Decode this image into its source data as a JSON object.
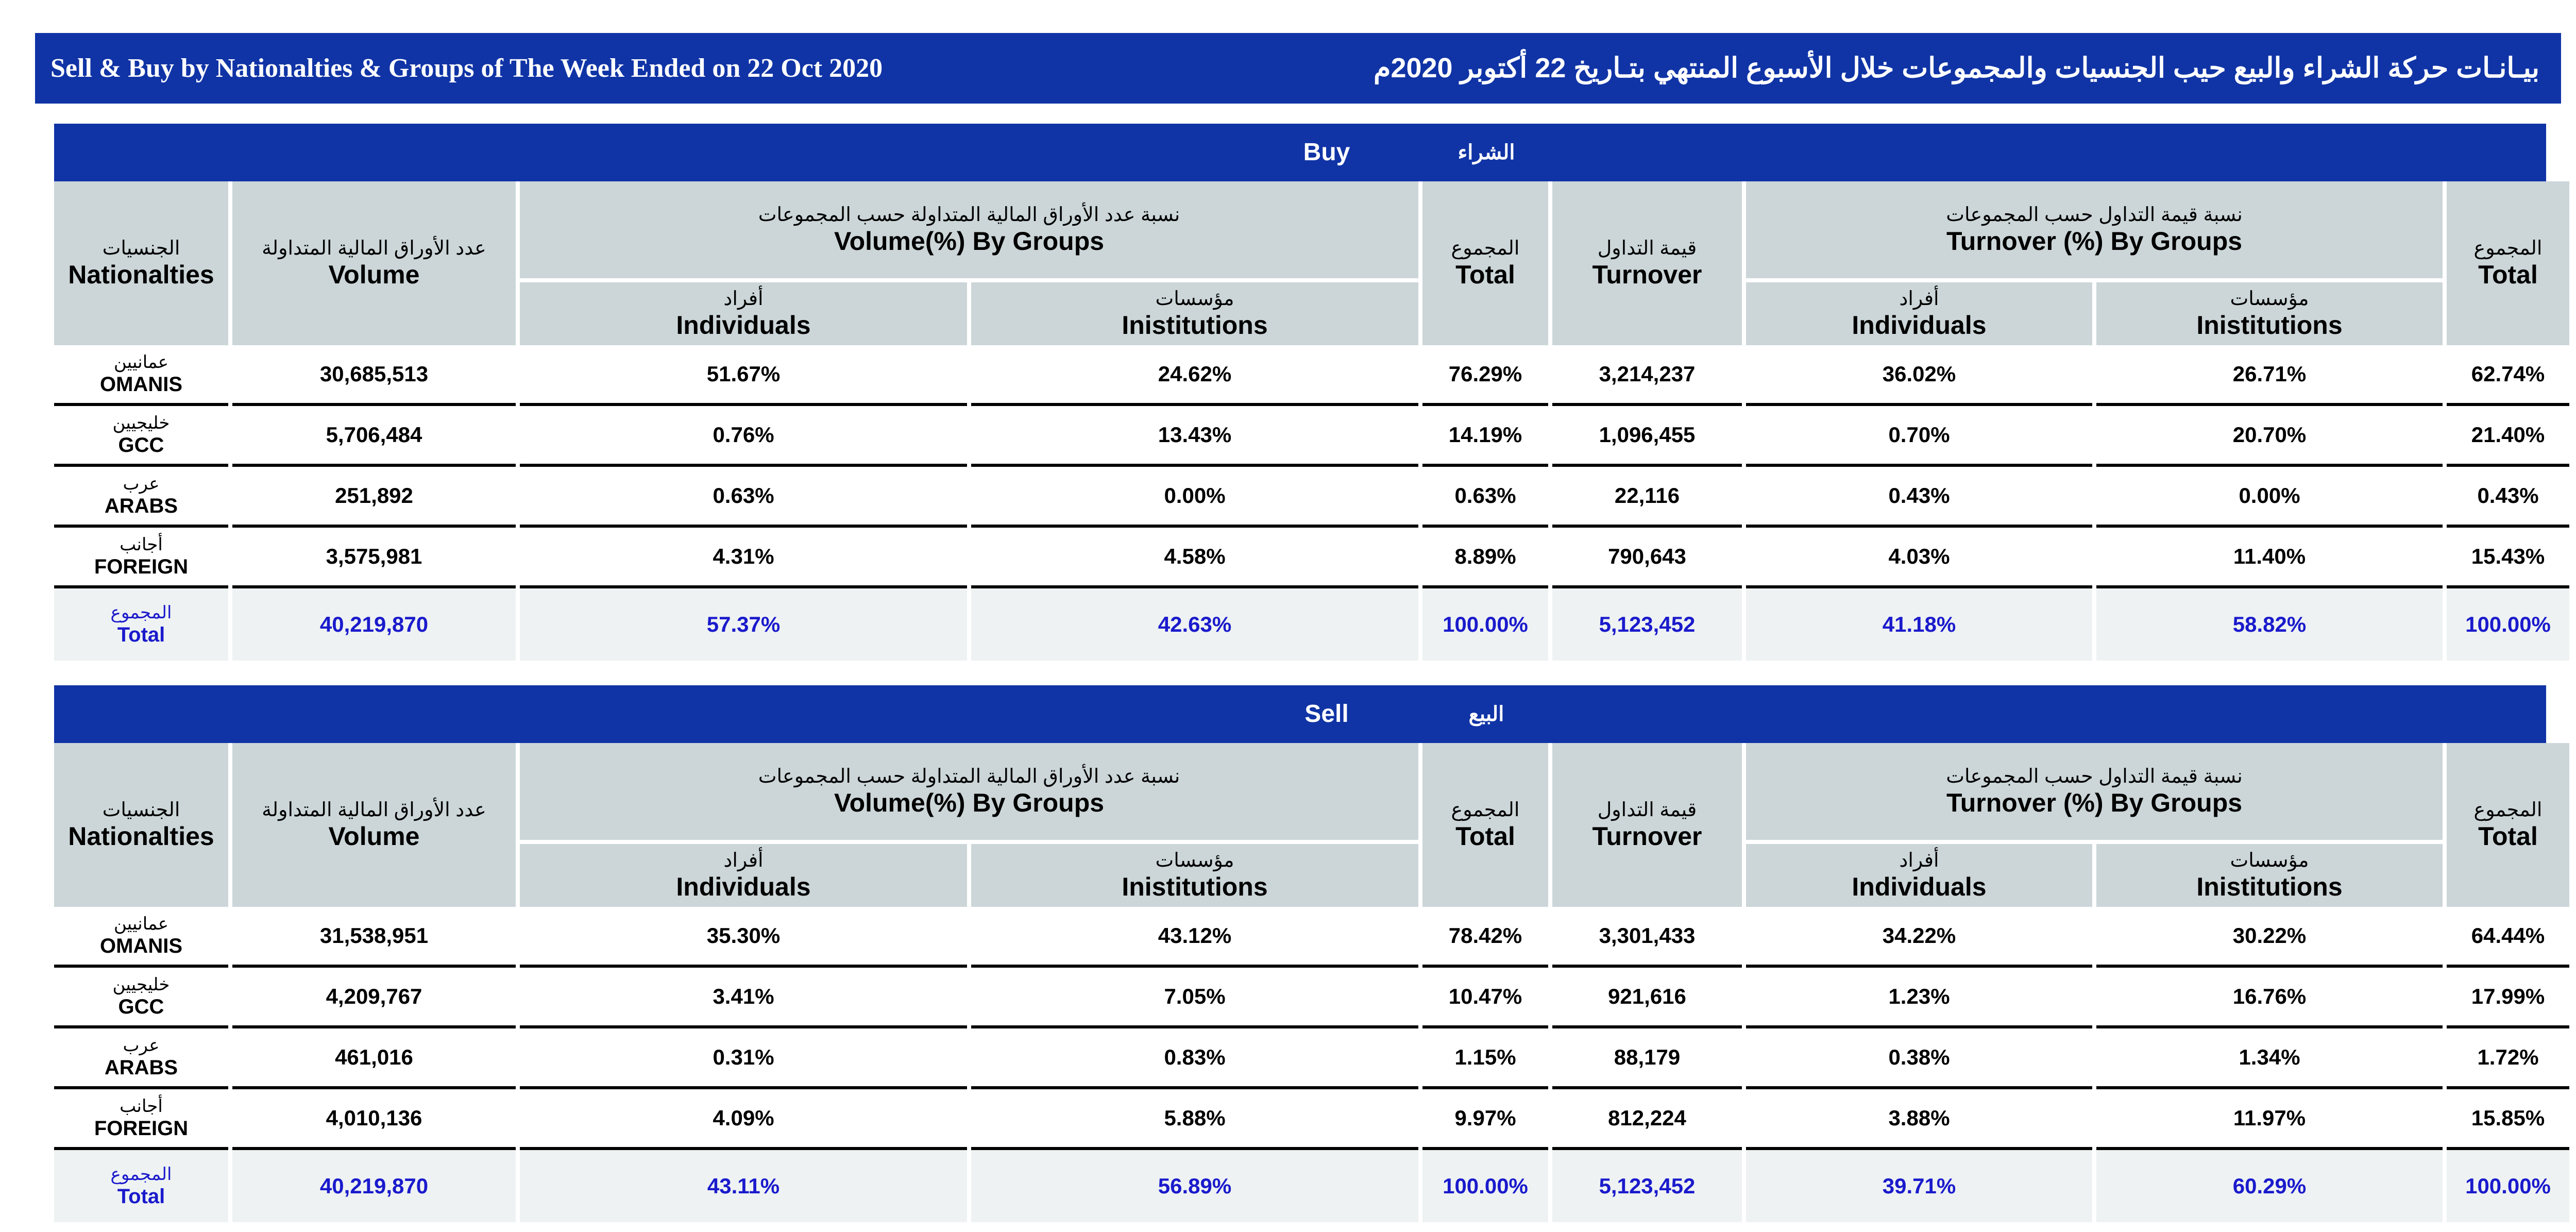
{
  "title": {
    "en": "Sell & Buy by Nationalties & Groups of The Week Ended on 22 Oct 2020",
    "ar": "بيـانـات حركة الشراء والبيع حيب الجنسيات والمجموعات خلال الأسبوع المنتهي  بتـاريخ 22 أكتوبر  2020م"
  },
  "headers": {
    "nationalities_ar": "الجنسيات",
    "nationalities_en": "Nationalties",
    "volume_ar": "عدد الأوراق المالية المتداولة",
    "volume_en": "Volume",
    "volume_groups_ar": "نسبة عدد الأوراق المالية المتداولة حسب المجموعات",
    "volume_groups_en": "Volume(%) By Groups",
    "individuals_ar": "أفراد",
    "individuals_en": "Individuals",
    "institutions_ar": "مؤسسات",
    "institutions_en": "Inistitutions",
    "total_ar": "المجموع",
    "total_en": "Total",
    "turnover_ar": "قيمة التداول",
    "turnover_en": "Turnover",
    "turnover_groups_ar": "نسبة قيمة التداول حسب المجموعات",
    "turnover_groups_en": "Turnover (%) By Groups"
  },
  "buy": {
    "label_en": "Buy",
    "label_ar": "الشراء",
    "rows": [
      {
        "ar": "عمانيين",
        "en": "OMANIS",
        "volume": "30,685,513",
        "vol_ind": "51.67%",
        "vol_inst": "24.62%",
        "vol_total": "76.29%",
        "turnover": "3,214,237",
        "to_ind": "36.02%",
        "to_inst": "26.71%",
        "to_total": "62.74%"
      },
      {
        "ar": "خليجيين",
        "en": "GCC",
        "volume": "5,706,484",
        "vol_ind": "0.76%",
        "vol_inst": "13.43%",
        "vol_total": "14.19%",
        "turnover": "1,096,455",
        "to_ind": "0.70%",
        "to_inst": "20.70%",
        "to_total": "21.40%"
      },
      {
        "ar": "عرب",
        "en": "ARABS",
        "volume": "251,892",
        "vol_ind": "0.63%",
        "vol_inst": "0.00%",
        "vol_total": "0.63%",
        "turnover": "22,116",
        "to_ind": "0.43%",
        "to_inst": "0.00%",
        "to_total": "0.43%"
      },
      {
        "ar": "أجانب",
        "en": "FOREIGN",
        "volume": "3,575,981",
        "vol_ind": "4.31%",
        "vol_inst": "4.58%",
        "vol_total": "8.89%",
        "turnover": "790,643",
        "to_ind": "4.03%",
        "to_inst": "11.40%",
        "to_total": "15.43%"
      }
    ],
    "total": {
      "ar": "المجموع",
      "en": "Total",
      "volume": "40,219,870",
      "vol_ind": "57.37%",
      "vol_inst": "42.63%",
      "vol_total": "100.00%",
      "turnover": "5,123,452",
      "to_ind": "41.18%",
      "to_inst": "58.82%",
      "to_total": "100.00%"
    }
  },
  "sell": {
    "label_en": "Sell",
    "label_ar": "البيع",
    "rows": [
      {
        "ar": "عمانيين",
        "en": "OMANIS",
        "volume": "31,538,951",
        "vol_ind": "35.30%",
        "vol_inst": "43.12%",
        "vol_total": "78.42%",
        "turnover": "3,301,433",
        "to_ind": "34.22%",
        "to_inst": "30.22%",
        "to_total": "64.44%"
      },
      {
        "ar": "خليجيين",
        "en": "GCC",
        "volume": "4,209,767",
        "vol_ind": "3.41%",
        "vol_inst": "7.05%",
        "vol_total": "10.47%",
        "turnover": "921,616",
        "to_ind": "1.23%",
        "to_inst": "16.76%",
        "to_total": "17.99%"
      },
      {
        "ar": "عرب",
        "en": "ARABS",
        "volume": "461,016",
        "vol_ind": "0.31%",
        "vol_inst": "0.83%",
        "vol_total": "1.15%",
        "turnover": "88,179",
        "to_ind": "0.38%",
        "to_inst": "1.34%",
        "to_total": "1.72%"
      },
      {
        "ar": "أجانب",
        "en": "FOREIGN",
        "volume": "4,010,136",
        "vol_ind": "4.09%",
        "vol_inst": "5.88%",
        "vol_total": "9.97%",
        "turnover": "812,224",
        "to_ind": "3.88%",
        "to_inst": "11.97%",
        "to_total": "15.85%"
      }
    ],
    "total": {
      "ar": "المجموع",
      "en": "Total",
      "volume": "40,219,870",
      "vol_ind": "43.11%",
      "vol_inst": "56.89%",
      "vol_total": "100.00%",
      "turnover": "5,123,452",
      "to_ind": "39.71%",
      "to_inst": "60.29%",
      "to_total": "100.00%"
    }
  }
}
